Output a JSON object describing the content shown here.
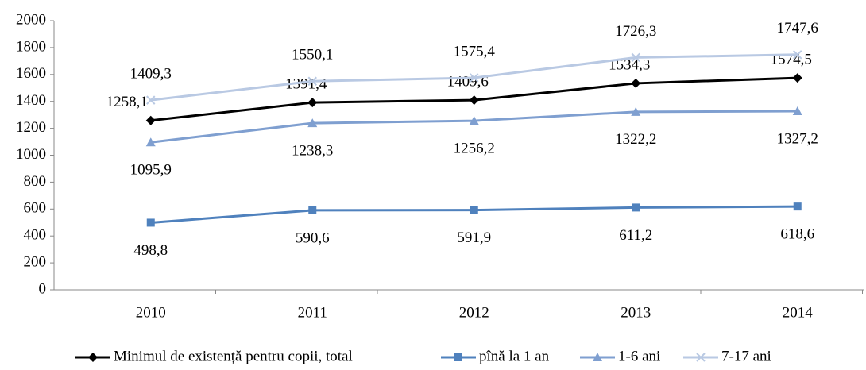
{
  "chart_data": {
    "type": "line",
    "categories": [
      "2010",
      "2011",
      "2012",
      "2013",
      "2014"
    ],
    "series": [
      {
        "name": "Minimul de existență pentru copii, total",
        "color": "#000000",
        "marker": "diamond",
        "values": [
          1258.1,
          1391.4,
          1409.6,
          1534.3,
          1574.5
        ],
        "value_labels": [
          "1258,1",
          "1391,4",
          "1409,6",
          "1534,3",
          "1574,5"
        ]
      },
      {
        "name": "pînă la 1 an",
        "color": "#4f81bd",
        "marker": "square",
        "values": [
          498.8,
          590.6,
          591.9,
          611.2,
          618.6
        ],
        "value_labels": [
          "498,8",
          "590,6",
          "591,9",
          "611,2",
          "618,6"
        ]
      },
      {
        "name": "1-6 ani",
        "color": "#7f9fd0",
        "marker": "triangle",
        "values": [
          1095.9,
          1238.3,
          1256.2,
          1322.2,
          1327.2
        ],
        "value_labels": [
          "1095,9",
          "1238,3",
          "1256,2",
          "1322,2",
          "1327,2"
        ]
      },
      {
        "name": "7-17 ani",
        "color": "#b9c9e3",
        "marker": "x",
        "values": [
          1409.3,
          1550.1,
          1575.4,
          1726.3,
          1747.6
        ],
        "value_labels": [
          "1409,3",
          "1550,1",
          "1575,4",
          "1726,3",
          "1747,6"
        ]
      }
    ],
    "ylim": [
      0,
      2000
    ],
    "yticks": [
      0,
      200,
      400,
      600,
      800,
      1000,
      1200,
      1400,
      1600,
      1800,
      2000
    ],
    "grid": false,
    "legend": "bottom"
  }
}
